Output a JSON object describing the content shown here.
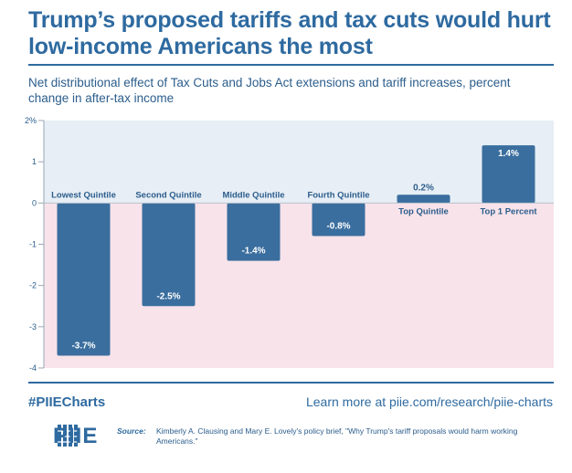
{
  "header": {
    "title": "Trump’s proposed tariffs and tax cuts would hurt low-income Americans the most",
    "subtitle": "Net distributional effect of Tax Cuts and Jobs Act extensions and tariff increases, percent change in after-tax income"
  },
  "chart_data": {
    "type": "bar",
    "title": "Trump’s proposed tariffs and tax cuts would hurt low-income Americans the most",
    "subtitle": "Net distributional effect of Tax Cuts and Jobs Act extensions and tariff increases, percent change in after-tax income",
    "categories": [
      "Lowest Quintile",
      "Second Quintile",
      "Middle Quintile",
      "Fourth Quintile",
      "Top Quintile",
      "Top 1 Percent"
    ],
    "values": [
      -3.7,
      -2.5,
      -1.4,
      -0.8,
      0.2,
      1.4
    ],
    "value_labels": [
      "-3.7%",
      "-2.5%",
      "-1.4%",
      "-0.8%",
      "0.2%",
      "1.4%"
    ],
    "yticks": [
      "2%",
      "1",
      "0",
      "-1",
      "-2",
      "-3",
      "-4"
    ],
    "ytick_values": [
      2,
      1,
      0,
      -1,
      -2,
      -3,
      -4
    ],
    "ylim": [
      -4,
      2
    ],
    "xlabel": "",
    "ylabel": "",
    "colors": {
      "bar": "#3a6e9e",
      "positive_bg": "#e7eef5",
      "negative_bg": "#f8e3ea",
      "text": "#2b5d8c"
    }
  },
  "footer": {
    "hashtag": "#PIIECharts",
    "link": "Learn more at piie.com/research/piie-charts",
    "logo_text": "PIIE",
    "source_label": "Source:",
    "source_text": "Kimberly A. Clausing and Mary E. Lovely's policy brief, \"Why Trump's tariff proposals would harm working Americans.\""
  }
}
